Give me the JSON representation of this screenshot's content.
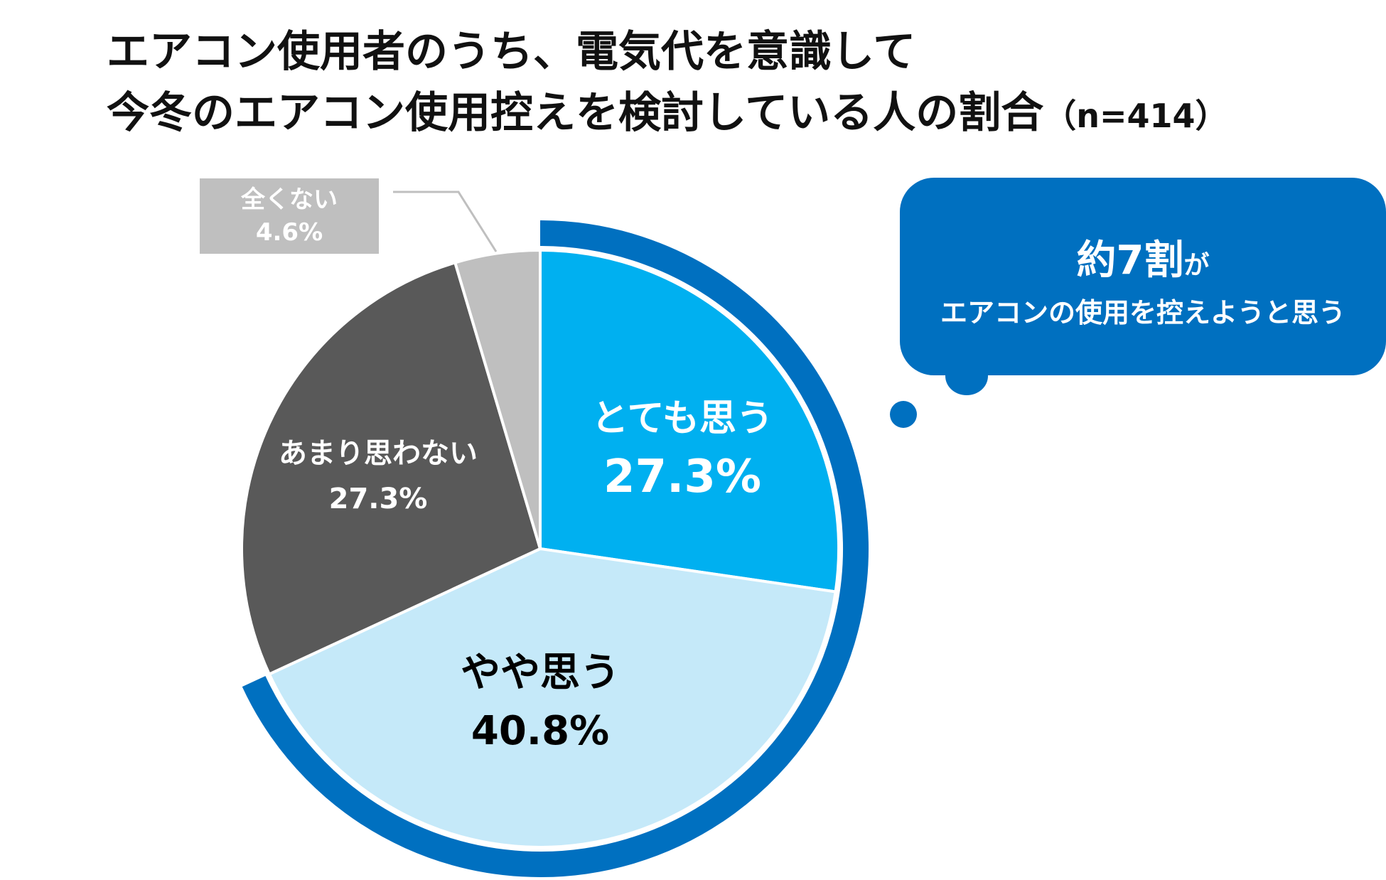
{
  "title": {
    "line1": "エアコン使用者のうち、電気代を意識して",
    "line2": "今冬のエアコン使用控えを検討している人の割合",
    "sample": "（n=414）"
  },
  "chart_data": {
    "type": "pie",
    "slices": [
      {
        "label": "とても思う",
        "value": 27.3,
        "value_text": "27.3%",
        "color": "#00b0f0",
        "text_color": "#ffffff"
      },
      {
        "label": "やや思う",
        "value": 40.8,
        "value_text": "40.8%",
        "color": "#c5e9f9",
        "text_color": "#000000"
      },
      {
        "label": "あまり思わない",
        "value": 27.3,
        "value_text": "27.3%",
        "color": "#595959",
        "text_color": "#ffffff"
      },
      {
        "label": "全くない",
        "value": 4.6,
        "value_text": "4.6%",
        "color": "#bfbfbf",
        "text_color": "#ffffff"
      }
    ],
    "highlight_ring": {
      "color": "#0070c0",
      "covers": [
        "とても思う",
        "やや思う"
      ]
    },
    "start_angle": "12 o'clock",
    "direction": "clockwise"
  },
  "callout": {
    "main": "約7割",
    "suffix": "が",
    "sub": "エアコンの使用を控えようと思う",
    "color": "#0070c0"
  }
}
